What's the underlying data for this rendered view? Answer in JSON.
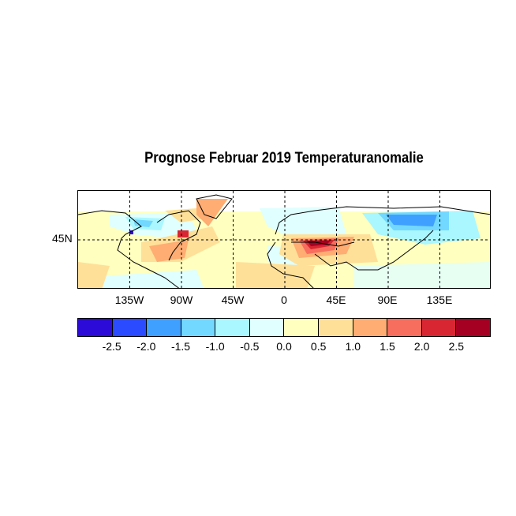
{
  "title": "Prognose Februar 2019 Temperaturanomalie",
  "map": {
    "projection": "cylindrical",
    "lon_range": [
      -180,
      180
    ],
    "lat_range": [
      0,
      90
    ],
    "x_ticks": [
      "135W",
      "90W",
      "45W",
      "0",
      "45E",
      "90E",
      "135E"
    ],
    "y_ticks": [
      "45N"
    ],
    "grid": "dashed"
  },
  "colorbar": {
    "labels": [
      "-2.5",
      "-2.0",
      "-1.5",
      "-1.0",
      "-0.5",
      "0.0",
      "0.5",
      "1.0",
      "1.5",
      "2.0",
      "2.5"
    ],
    "colors": [
      "#2C0BD8",
      "#2A4BFF",
      "#3FA0FF",
      "#72D8FF",
      "#AAF7FF",
      "#E0FFFF",
      "#FFFFBF",
      "#FFE099",
      "#FFAD72",
      "#F76D5E",
      "#D82632",
      "#A50021"
    ]
  }
}
